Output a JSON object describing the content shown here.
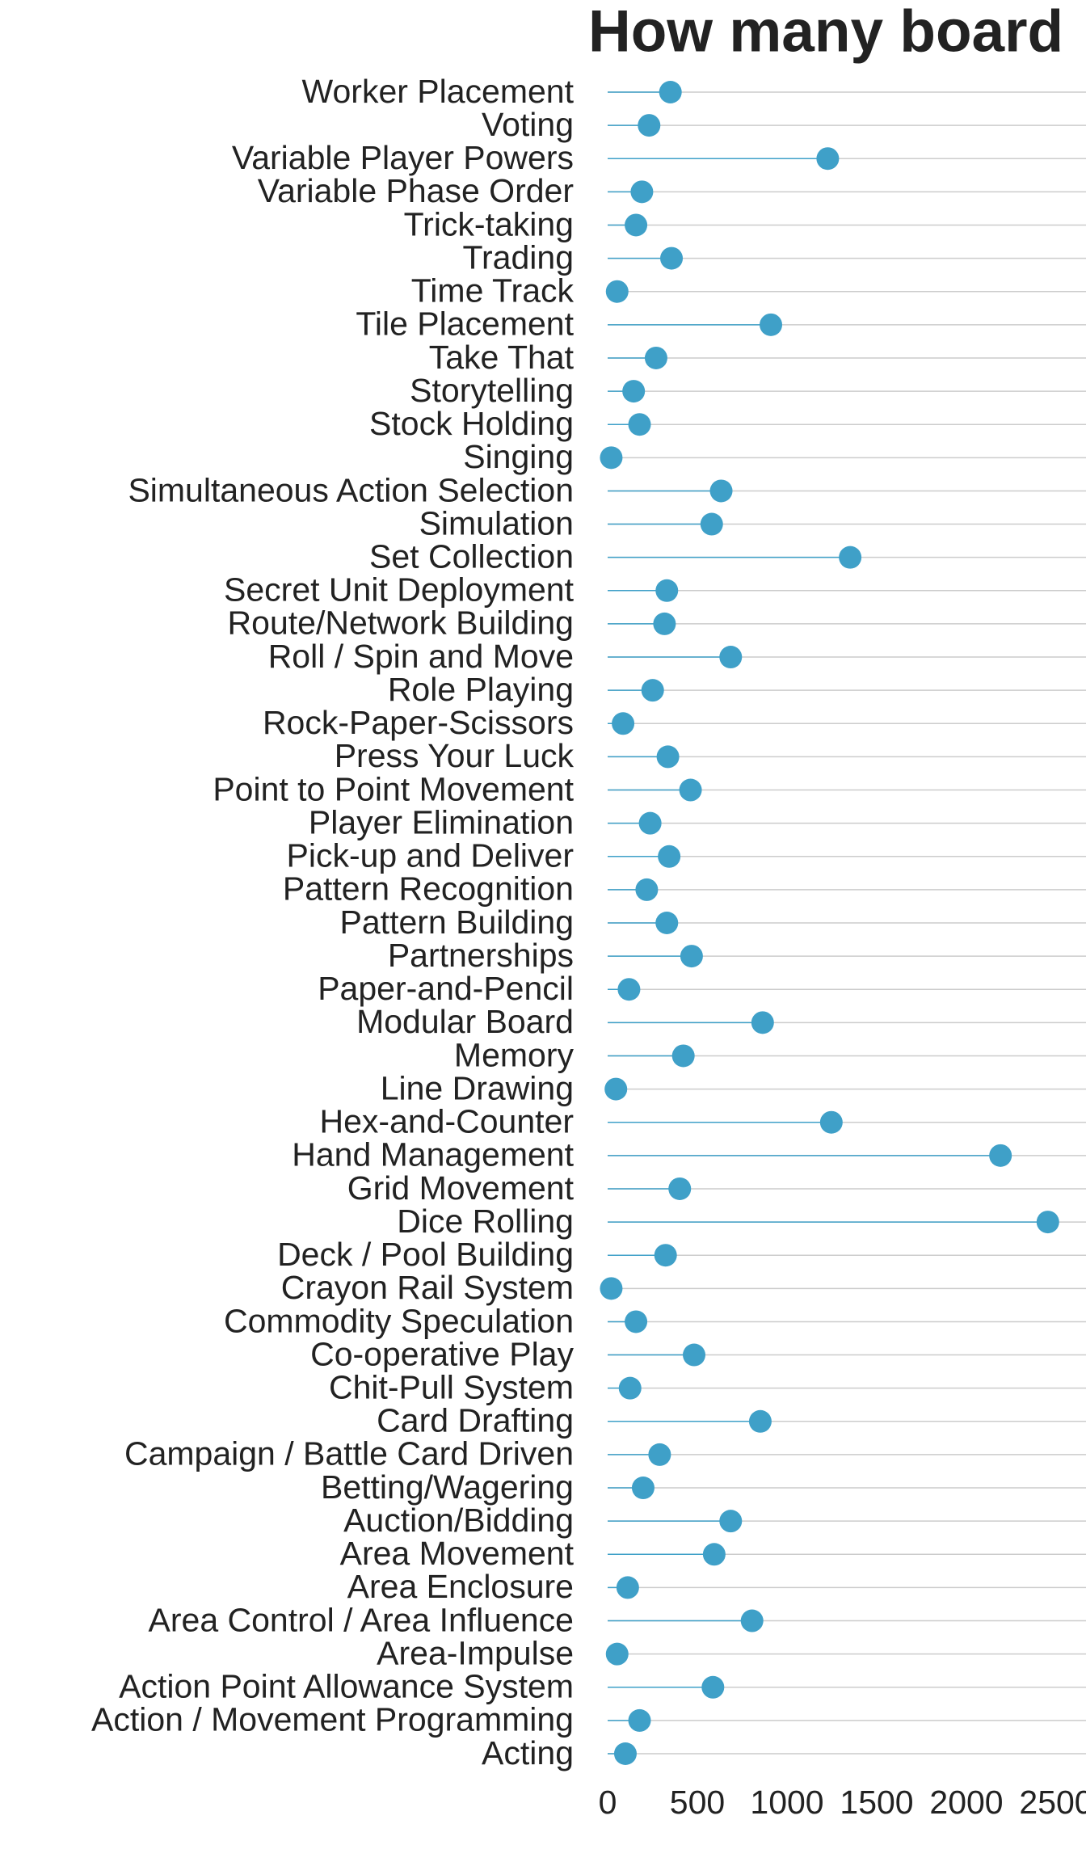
{
  "chart_data": {
    "type": "lollipop",
    "title": "How many board",
    "categories": [
      "Worker Placement",
      "Voting",
      "Variable Player Powers",
      "Variable Phase Order",
      "Trick-taking",
      "Trading",
      "Time Track",
      "Tile Placement",
      "Take That",
      "Storytelling",
      "Stock Holding",
      "Singing",
      "Simultaneous Action Selection",
      "Simulation",
      "Set Collection",
      "Secret Unit Deployment",
      "Route/Network Building",
      "Roll / Spin and Move",
      "Role Playing",
      "Rock-Paper-Scissors",
      "Press Your Luck",
      "Point to Point Movement",
      "Player Elimination",
      "Pick-up and Deliver",
      "Pattern Recognition",
      "Pattern Building",
      "Partnerships",
      "Paper-and-Pencil",
      "Modular Board",
      "Memory",
      "Line Drawing",
      "Hex-and-Counter",
      "Hand Management",
      "Grid Movement",
      "Dice Rolling",
      "Deck / Pool Building",
      "Crayon Rail System",
      "Commodity Speculation",
      "Co-operative Play",
      "Chit-Pull System",
      "Card Drafting",
      "Campaign / Battle Card Driven",
      "Betting/Wagering",
      "Auction/Bidding",
      "Area Movement",
      "Area Enclosure",
      "Area Control / Area Influence",
      "Area-Impulse",
      "Action Point Allowance System",
      "Action / Movement Programming",
      "Acting"
    ],
    "values": [
      350,
      231,
      1227,
      191,
      158,
      356,
      53,
      910,
      270,
      145,
      178,
      20,
      633,
      580,
      1352,
      330,
      317,
      686,
      251,
      86,
      336,
      462,
      237,
      343,
      218,
      330,
      468,
      119,
      864,
      422,
      46,
      1247,
      2190,
      402,
      2454,
      323,
      20,
      158,
      482,
      125,
      851,
      290,
      198,
      686,
      594,
      112,
      805,
      53,
      587,
      178,
      99
    ],
    "color": "#3fa0c8",
    "xlim": [
      0,
      2500
    ],
    "xticks": [
      0,
      500,
      1000,
      1500,
      2000,
      2500
    ],
    "grid": true
  }
}
